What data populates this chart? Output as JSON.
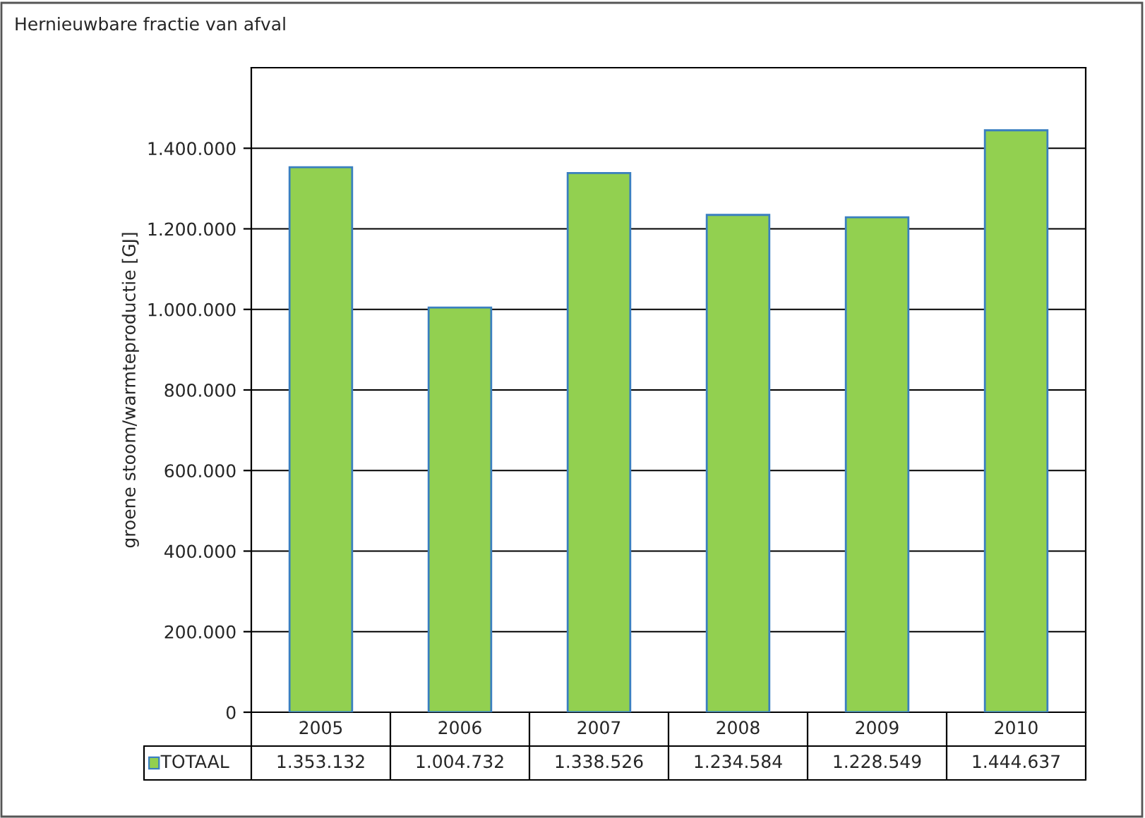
{
  "chart_data": {
    "type": "bar",
    "title": "Hernieuwbare fractie van afval",
    "ylabel": "groene stoom/warmteproductie [GJ]",
    "categories": [
      "2005",
      "2006",
      "2007",
      "2008",
      "2009",
      "2010"
    ],
    "series": [
      {
        "name": "TOTAAL",
        "color": "#92d050",
        "values": [
          1353132,
          1004732,
          1338526,
          1234584,
          1228549,
          1444637
        ],
        "value_labels": [
          "1.353.132",
          "1.004.732",
          "1.338.526",
          "1.234.584",
          "1.228.549",
          "1.444.637"
        ]
      }
    ],
    "ylim": [
      0,
      1600000
    ],
    "yticks": [
      {
        "value": 0,
        "label": "0"
      },
      {
        "value": 200000,
        "label": "200.000"
      },
      {
        "value": 400000,
        "label": "400.000"
      },
      {
        "value": 600000,
        "label": "600.000"
      },
      {
        "value": 800000,
        "label": "800.000"
      },
      {
        "value": 1000000,
        "label": "1.000.000"
      },
      {
        "value": 1200000,
        "label": "1.200.000"
      },
      {
        "value": 1400000,
        "label": "1.400.000"
      }
    ],
    "grid": "y",
    "legend": "bottom left"
  }
}
